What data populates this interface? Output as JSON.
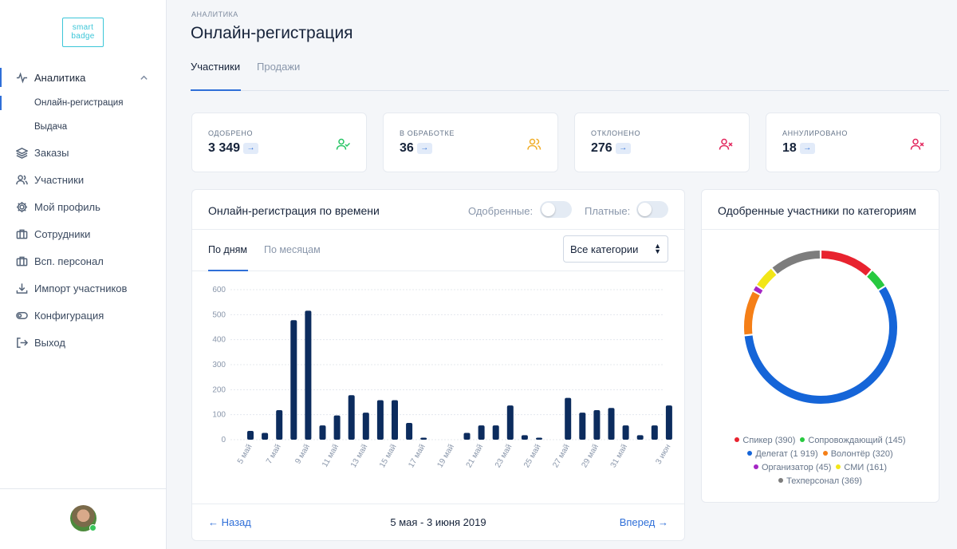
{
  "logo": {
    "line1": "smart",
    "line2": "badge"
  },
  "sidebar": {
    "analytics": "Аналитика",
    "sub": [
      "Онлайн-регистрация",
      "Выдача"
    ],
    "items": [
      "Заказы",
      "Участники",
      "Мой профиль",
      "Сотрудники",
      "Всп. персонал",
      "Импорт участников",
      "Конфигурация",
      "Выход"
    ]
  },
  "page": {
    "breadcrumb": "АНАЛИТИКА",
    "title": "Онлайн-регистрация",
    "tabs": [
      "Участники",
      "Продажи"
    ]
  },
  "stats": [
    {
      "label": "ОДОБРЕНО",
      "value": "3 349",
      "arrow": "→",
      "icon": "user-check-icon",
      "color": "#26c464"
    },
    {
      "label": "В ОБРАБОТКЕ",
      "value": "36",
      "arrow": "→",
      "icon": "users-icon",
      "color": "#f0ad28"
    },
    {
      "label": "ОТКЛОНЕНО",
      "value": "276",
      "arrow": "→",
      "icon": "user-x-icon",
      "color": "#e2245c"
    },
    {
      "label": "АННУЛИРОВАНО",
      "value": "18",
      "arrow": "→",
      "icon": "user-x-icon",
      "color": "#e2245c"
    }
  ],
  "time_card": {
    "title": "Онлайн-регистрация по времени",
    "toggle1": "Одобренные:",
    "toggle2": "Платные:",
    "subtabs": [
      "По дням",
      "По месяцам"
    ],
    "select": "Все категории",
    "back": "← Назад",
    "range": "5 мая - 3 июня 2019",
    "next": "Вперед →"
  },
  "cat_card": {
    "title": "Одобренные участники по категориям"
  },
  "chart_data": [
    {
      "type": "bar",
      "x": [
        "5 май",
        "6 май",
        "7 май",
        "8 май",
        "9 май",
        "10 май",
        "11 май",
        "12 май",
        "13 май",
        "14 май",
        "15 май",
        "16 май",
        "17 май",
        "18 май",
        "19 май",
        "20 май",
        "21 май",
        "22 май",
        "23 май",
        "24 май",
        "25 май",
        "26 май",
        "27 май",
        "28 май",
        "29 май",
        "30 май",
        "31 май",
        "1 июн",
        "2 июн",
        "3 июн"
      ],
      "tick_labels": [
        "5 май",
        "7 май",
        "9 май",
        "11 май",
        "13 май",
        "15 май",
        "17 май",
        "19 май",
        "21 май",
        "23 май",
        "25 май",
        "27 май",
        "29 май",
        "31 май",
        "3 июн"
      ],
      "values": [
        35,
        27,
        118,
        478,
        516,
        57,
        97,
        178,
        108,
        158,
        158,
        67,
        8,
        0,
        0,
        27,
        57,
        57,
        137,
        18,
        8,
        0,
        167,
        108,
        118,
        127,
        57,
        18,
        57,
        137
      ],
      "ylim": [
        0,
        600
      ],
      "yticks": [
        0,
        100,
        200,
        300,
        400,
        500,
        600
      ],
      "color": "#0c2c5e",
      "grid": true
    },
    {
      "type": "pie",
      "style": "donut",
      "series": [
        {
          "name": "Спикер (390)",
          "value": 390,
          "color": "#e8232f"
        },
        {
          "name": "Сопровождающий (145)",
          "value": 145,
          "color": "#27c93f"
        },
        {
          "name": "Делегат (1 919)",
          "value": 1919,
          "color": "#1565d8"
        },
        {
          "name": "Волонтёр (320)",
          "value": 320,
          "color": "#f57f17"
        },
        {
          "name": "Организатор (45)",
          "value": 45,
          "color": "#a426c4"
        },
        {
          "name": "СМИ (161)",
          "value": 161,
          "color": "#f2e618"
        },
        {
          "name": "Техперсонал (369)",
          "value": 369,
          "color": "#7d7d7d"
        }
      ],
      "legend": "bottom"
    }
  ]
}
